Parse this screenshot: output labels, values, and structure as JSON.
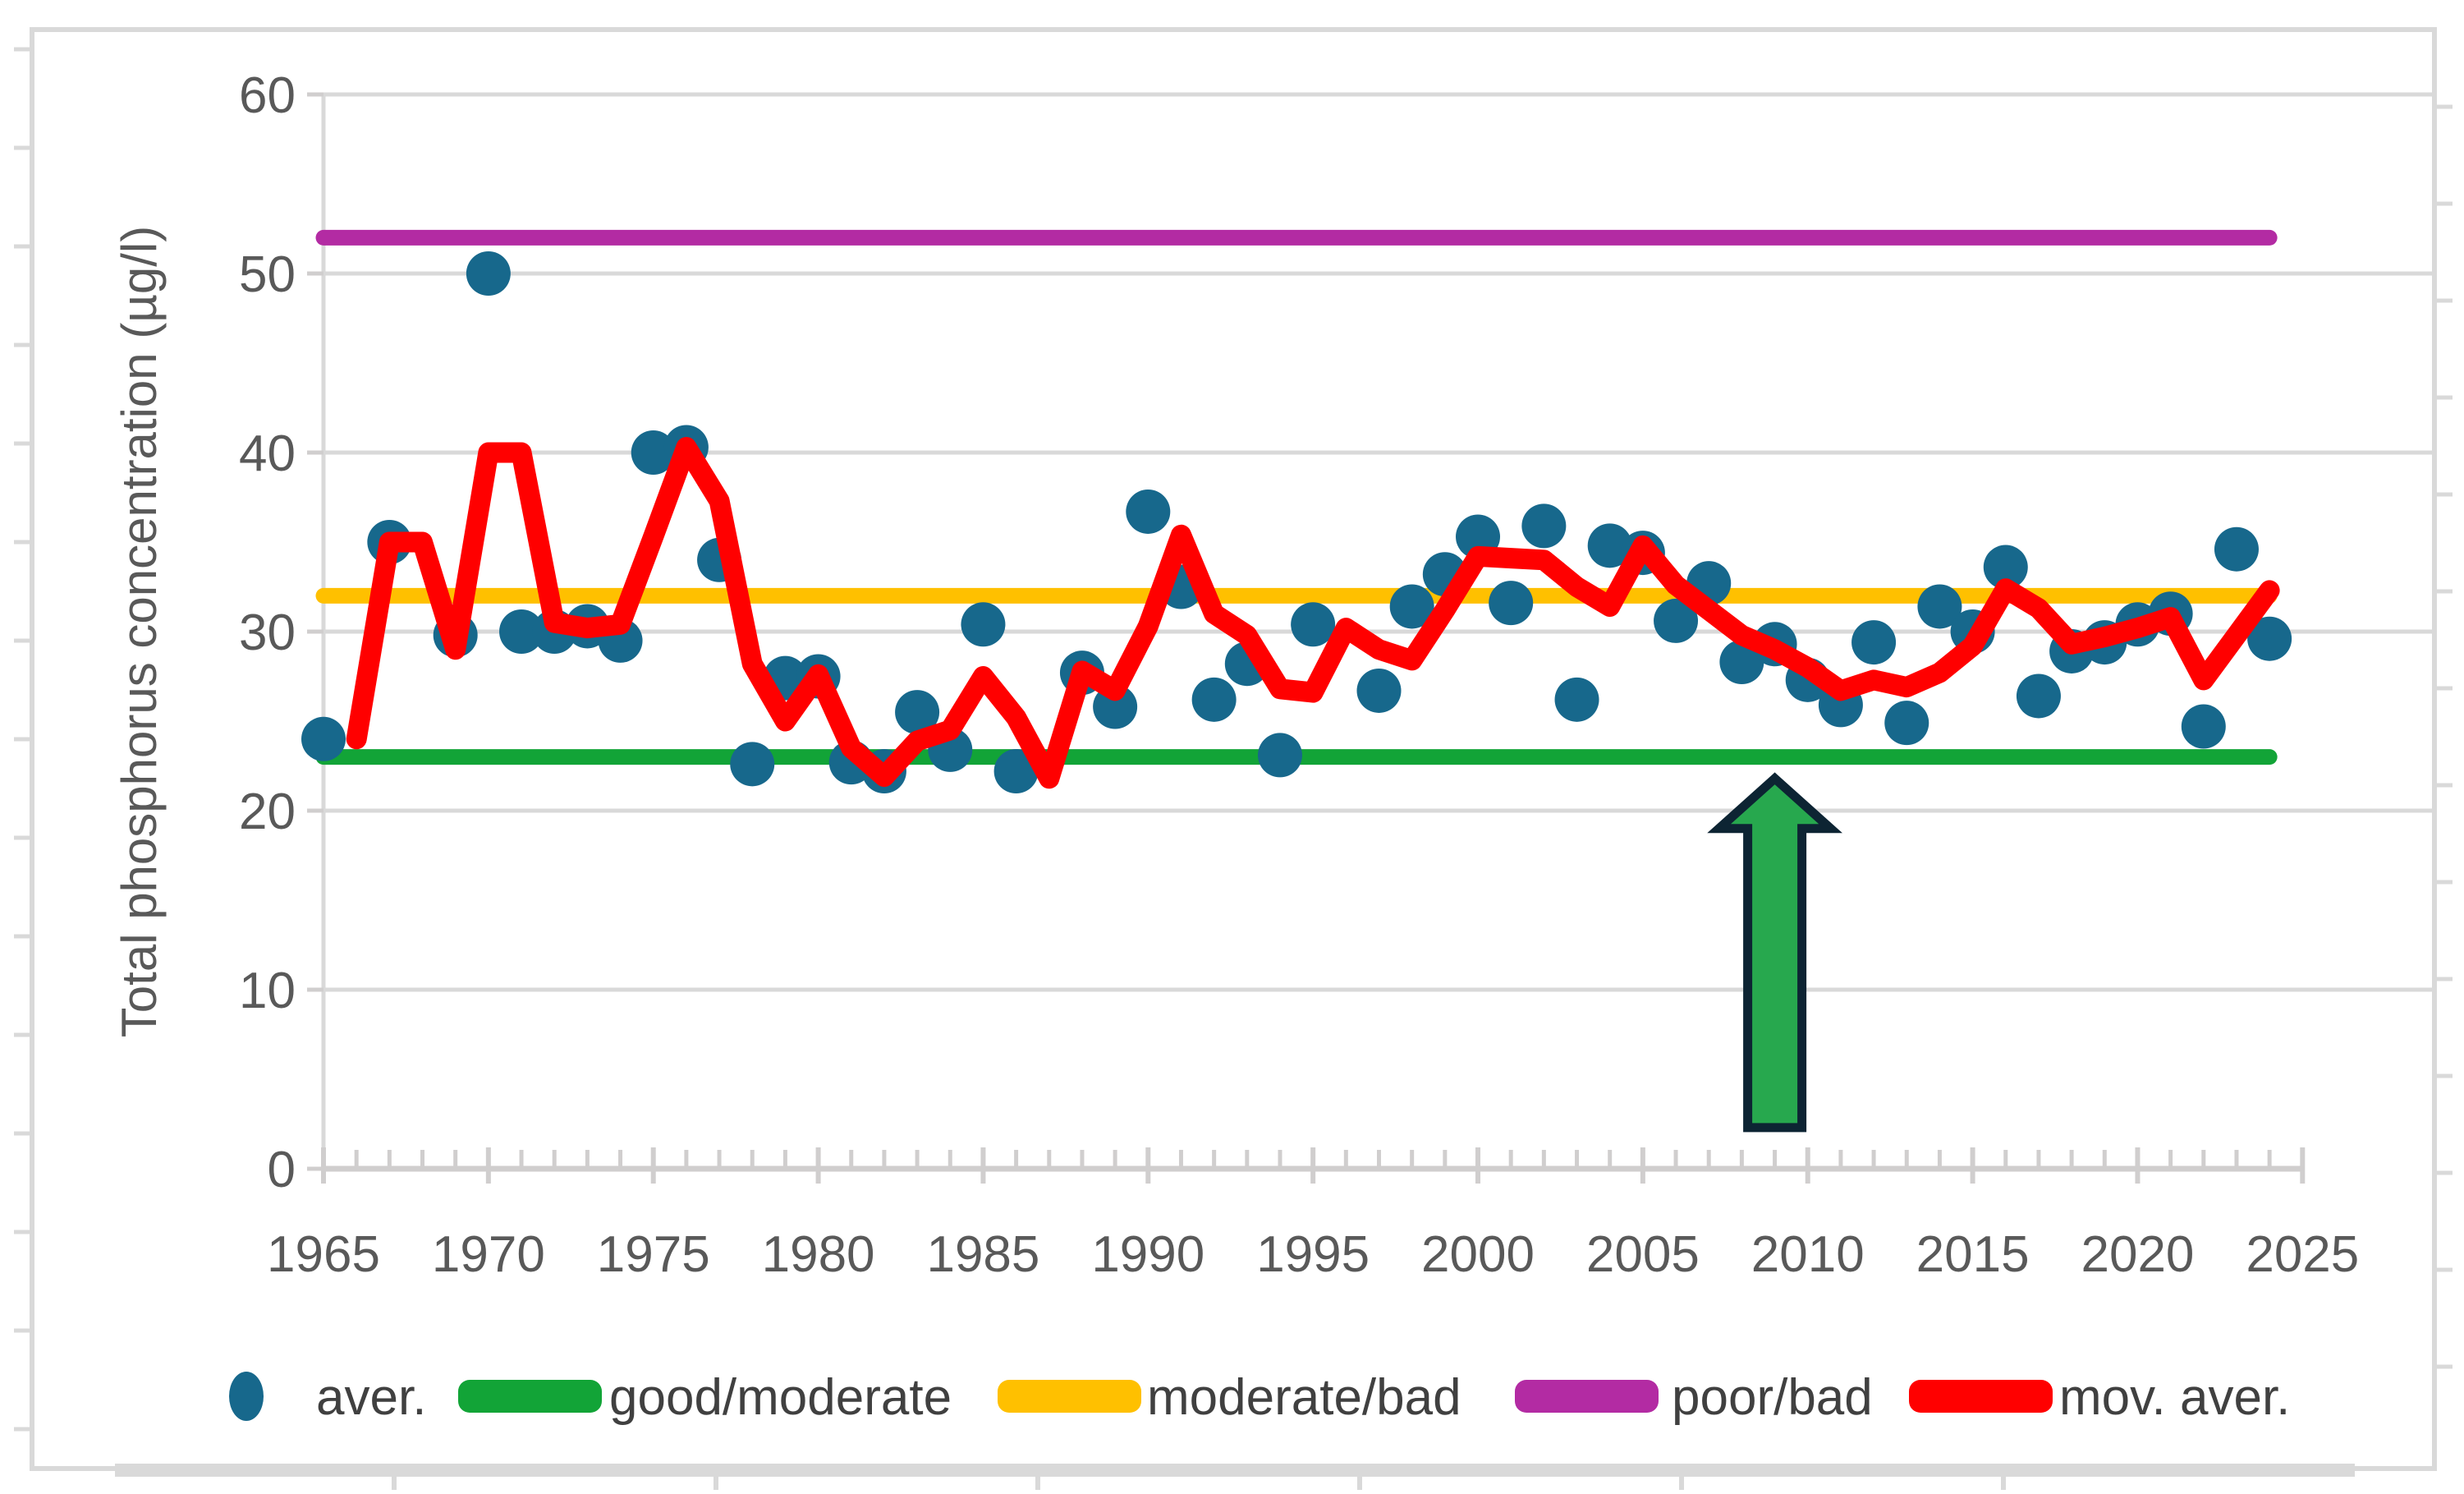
{
  "chart_data": {
    "type": "scatter",
    "title": "",
    "xlabel": "",
    "ylabel": "Total phosphorus concentration (µg/l)",
    "xlim": [
      1965,
      2029
    ],
    "ylim": [
      0,
      60
    ],
    "xticks": [
      1965,
      1970,
      1975,
      1980,
      1985,
      1990,
      1995,
      2000,
      2005,
      2010,
      2015,
      2020,
      2025
    ],
    "yticks": [
      0,
      10,
      20,
      30,
      40,
      50,
      60
    ],
    "grid": "horizontal",
    "legend_position": "bottom",
    "series": [
      {
        "name": "aver.",
        "type": "scatter",
        "color": "#17688C",
        "points": [
          [
            1965,
            24.0
          ],
          [
            1967,
            35.0
          ],
          [
            1969,
            29.8
          ],
          [
            1970,
            50.0
          ],
          [
            1971,
            30.0
          ],
          [
            1972,
            30.0
          ],
          [
            1973,
            30.3
          ],
          [
            1974,
            29.5
          ],
          [
            1975,
            40.0
          ],
          [
            1976,
            40.3
          ],
          [
            1977,
            34.0
          ],
          [
            1978,
            22.6
          ],
          [
            1979,
            27.4
          ],
          [
            1980,
            27.5
          ],
          [
            1981,
            22.7
          ],
          [
            1982,
            22.2
          ],
          [
            1983,
            25.5
          ],
          [
            1984,
            23.4
          ],
          [
            1985,
            30.4
          ],
          [
            1986,
            22.2
          ],
          [
            1988,
            27.7
          ],
          [
            1989,
            25.8
          ],
          [
            1990,
            36.7
          ],
          [
            1991,
            32.5
          ],
          [
            1992,
            26.2
          ],
          [
            1993,
            28.2
          ],
          [
            1994,
            23.1
          ],
          [
            1995,
            30.4
          ],
          [
            1997,
            26.7
          ],
          [
            1998,
            31.4
          ],
          [
            1999,
            33.2
          ],
          [
            2000,
            35.3
          ],
          [
            2001,
            31.6
          ],
          [
            2002,
            35.9
          ],
          [
            2003,
            26.2
          ],
          [
            2004,
            34.8
          ],
          [
            2005,
            34.4
          ],
          [
            2006,
            30.6
          ],
          [
            2007,
            32.7
          ],
          [
            2008,
            28.3
          ],
          [
            2009,
            29.3
          ],
          [
            2010,
            27.3
          ],
          [
            2011,
            25.9
          ],
          [
            2012,
            29.4
          ],
          [
            2013,
            24.9
          ],
          [
            2014,
            31.4
          ],
          [
            2015,
            30.0
          ],
          [
            2016,
            33.6
          ],
          [
            2017,
            26.4
          ],
          [
            2018,
            28.9
          ],
          [
            2019,
            29.4
          ],
          [
            2020,
            30.4
          ],
          [
            2021,
            31.0
          ],
          [
            2022,
            24.7
          ],
          [
            2023,
            34.6
          ],
          [
            2024,
            29.6
          ]
        ]
      },
      {
        "name": "mov. aver.",
        "type": "line",
        "color": "#FF0000",
        "points": [
          [
            1966,
            24.0
          ],
          [
            1967,
            35.0
          ],
          [
            1968,
            35.0
          ],
          [
            1969,
            29.0
          ],
          [
            1970,
            40.0
          ],
          [
            1971,
            40.0
          ],
          [
            1972,
            30.5
          ],
          [
            1973,
            30.2
          ],
          [
            1974,
            30.4
          ],
          [
            1975,
            35.3
          ],
          [
            1976,
            40.3
          ],
          [
            1977,
            37.3
          ],
          [
            1978,
            28.2
          ],
          [
            1979,
            25.0
          ],
          [
            1980,
            27.6
          ],
          [
            1981,
            23.5
          ],
          [
            1982,
            21.9
          ],
          [
            1983,
            23.9
          ],
          [
            1984,
            24.5
          ],
          [
            1985,
            27.5
          ],
          [
            1986,
            25.2
          ],
          [
            1987,
            21.8
          ],
          [
            1988,
            27.8
          ],
          [
            1989,
            26.7
          ],
          [
            1990,
            30.3
          ],
          [
            1991,
            35.4
          ],
          [
            1992,
            31.0
          ],
          [
            1993,
            29.8
          ],
          [
            1994,
            26.8
          ],
          [
            1995,
            26.6
          ],
          [
            1996,
            30.2
          ],
          [
            1997,
            29.0
          ],
          [
            1998,
            28.4
          ],
          [
            1999,
            31.2
          ],
          [
            2000,
            34.2
          ],
          [
            2001,
            34.1
          ],
          [
            2002,
            34.0
          ],
          [
            2003,
            32.5
          ],
          [
            2004,
            31.4
          ],
          [
            2005,
            34.8
          ],
          [
            2006,
            32.6
          ],
          [
            2007,
            31.2
          ],
          [
            2008,
            29.8
          ],
          [
            2009,
            29.0
          ],
          [
            2010,
            28.0
          ],
          [
            2011,
            26.7
          ],
          [
            2012,
            27.3
          ],
          [
            2013,
            26.9
          ],
          [
            2014,
            27.7
          ],
          [
            2015,
            29.2
          ],
          [
            2016,
            32.4
          ],
          [
            2017,
            31.3
          ],
          [
            2018,
            29.3
          ],
          [
            2019,
            29.7
          ],
          [
            2020,
            30.2
          ],
          [
            2021,
            30.8
          ],
          [
            2022,
            27.3
          ],
          [
            2023,
            29.8
          ],
          [
            2024,
            32.3
          ]
        ]
      }
    ],
    "threshold_lines": [
      {
        "name": "good/moderate",
        "value": 23,
        "color": "#12A437",
        "x_start": 1965,
        "x_end": 2024
      },
      {
        "name": "moderate/bad",
        "value": 32,
        "color": "#FFC000",
        "x_start": 1965,
        "x_end": 2024
      },
      {
        "name": "poor/bad",
        "value": 52,
        "color": "#B32BA3",
        "x_start": 1965,
        "x_end": 2024
      }
    ],
    "annotation_arrow": {
      "year": 2009,
      "value_from": 2.3,
      "value_to": 21.8,
      "fill": "#27A84E",
      "outline": "#0D2433"
    }
  },
  "legend": {
    "items": [
      {
        "label": "aver.",
        "marker": "dot",
        "color": "#17688C"
      },
      {
        "label": "good/moderate",
        "marker": "bar",
        "color": "#12A437"
      },
      {
        "label": "moderate/bad",
        "marker": "bar",
        "color": "#FFC000"
      },
      {
        "label": "poor/bad",
        "marker": "bar",
        "color": "#B32BA3"
      },
      {
        "label": "mov. aver.",
        "marker": "bar",
        "color": "#FF0000"
      }
    ]
  },
  "style_colors": {
    "gridline": "#D9D9D9",
    "axis_line": "#D0CECE",
    "tick_label": "#595959",
    "axis_title": "#595959",
    "legend_text": "#404040",
    "frame": "#D9D9D9"
  }
}
